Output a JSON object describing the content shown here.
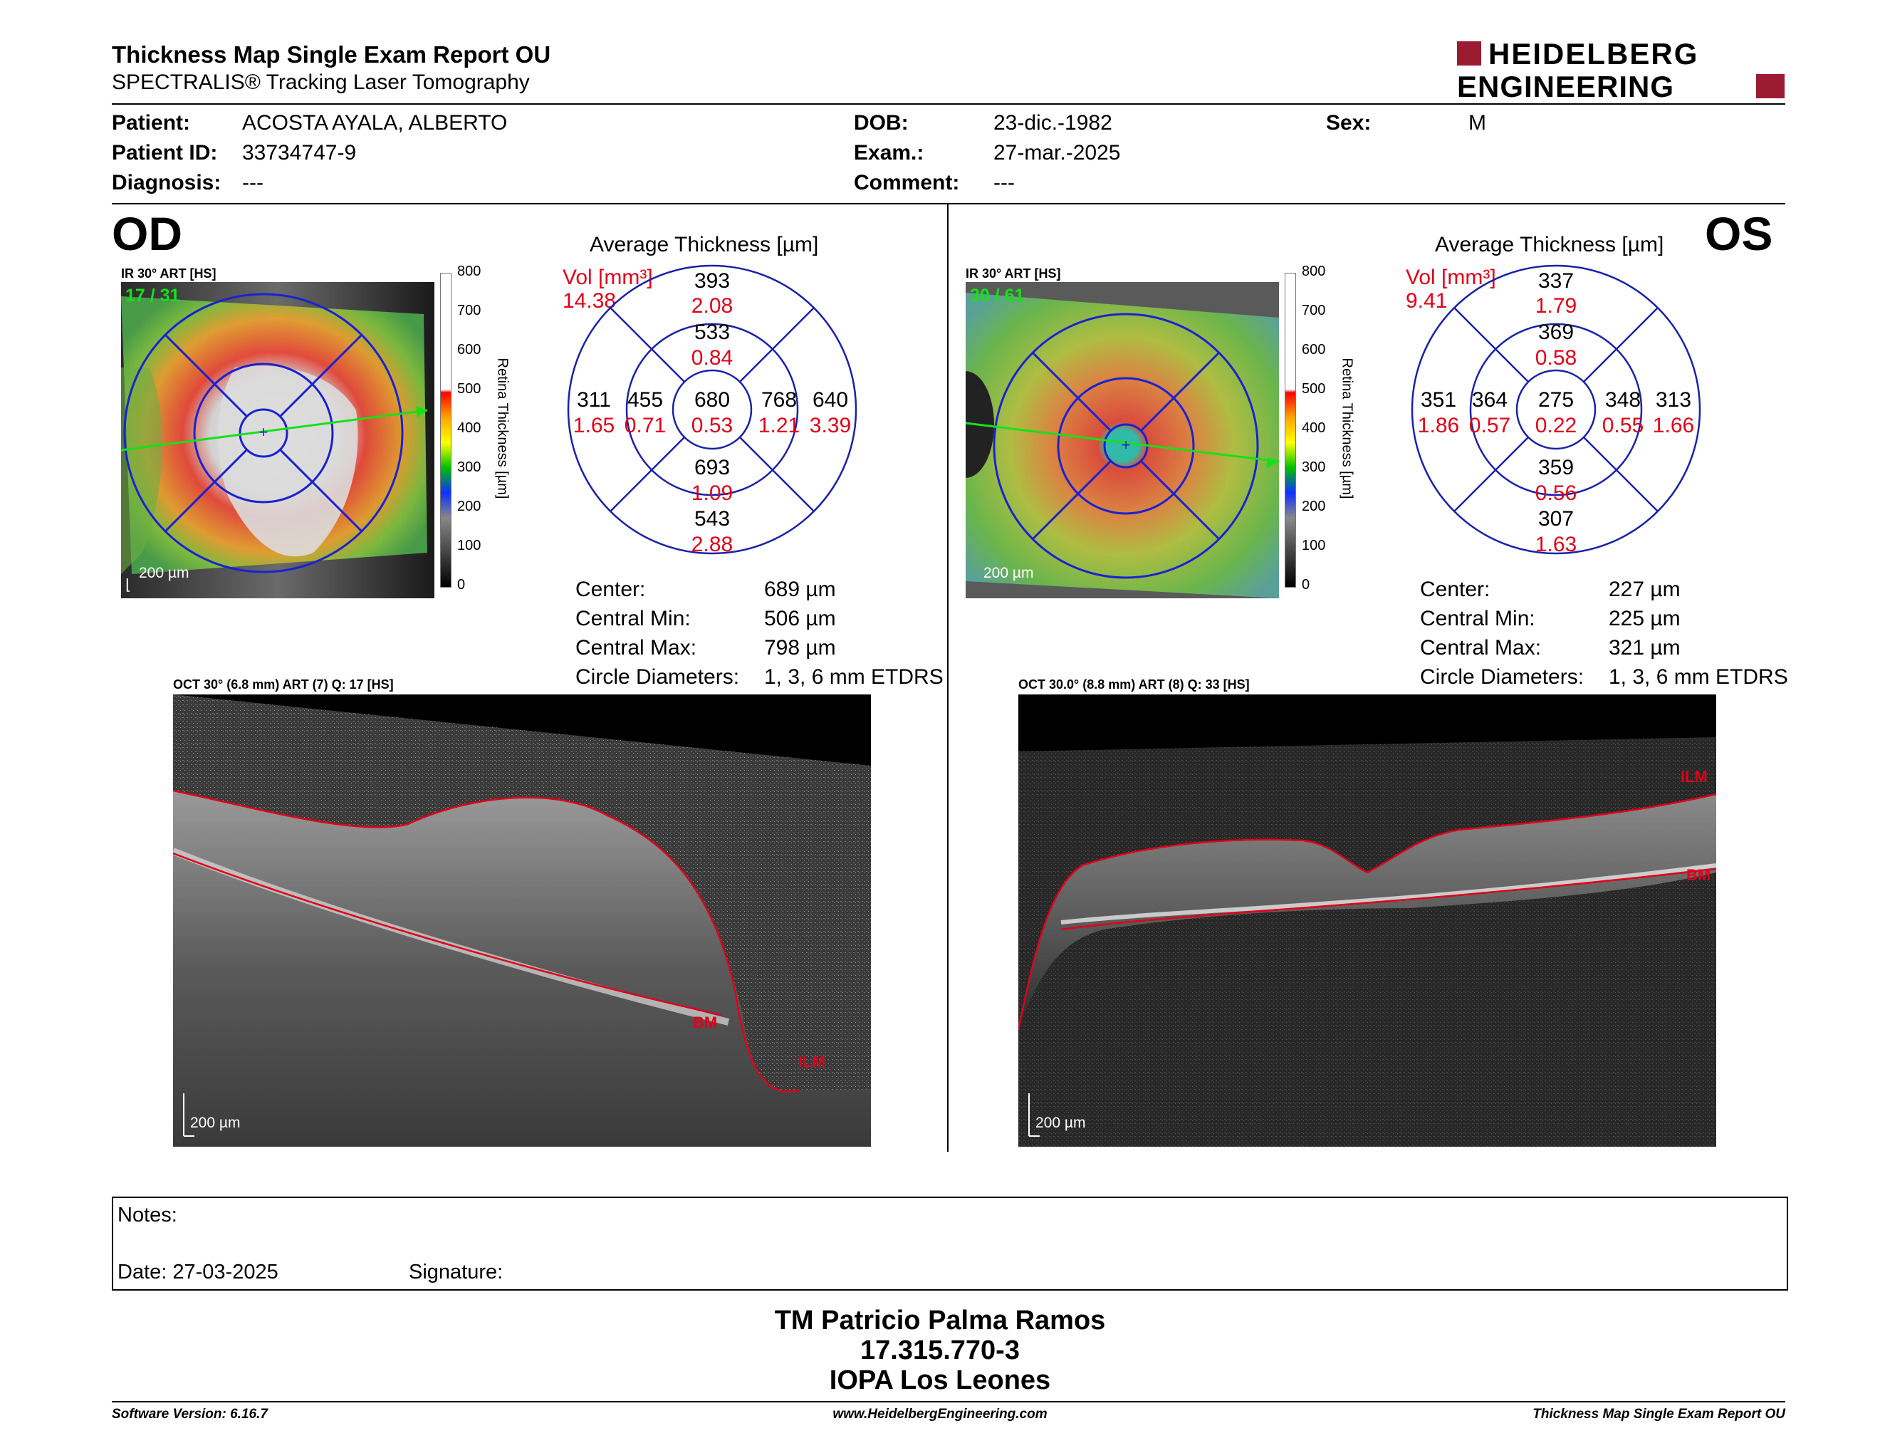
{
  "header": {
    "title": "Thickness Map Single Exam Report OU",
    "subtitle": "SPECTRALIS® Tracking Laser Tomography",
    "logo_line1": "HEIDELBERG",
    "logo_line2": "ENGINEERING",
    "brand_color": "#9b1b30"
  },
  "patient": {
    "patient_label": "Patient:",
    "patient_value": "ACOSTA AYALA, ALBERTO",
    "id_label": "Patient ID:",
    "id_value": "33734747-9",
    "diagnosis_label": "Diagnosis:",
    "diagnosis_value": "---",
    "dob_label": "DOB:",
    "dob_value": "23-dic.-1982",
    "exam_label": "Exam.:",
    "exam_value": "27-mar.-2025",
    "comment_label": "Comment:",
    "comment_value": "---",
    "sex_label": "Sex:",
    "sex_value": "M"
  },
  "od": {
    "eye": "OD",
    "fundus_title": "IR 30° ART [HS]",
    "frames": "17 / 31",
    "scale": "200 µm",
    "avg_title": "Average Thickness [µm]",
    "vol_label": "Vol [mm³]",
    "vol_total": "14.38",
    "center_thickness": "680",
    "center_vol": "0.53",
    "inner_superior": "533",
    "inner_superior_vol": "0.84",
    "inner_inferior": "693",
    "inner_inferior_vol": "1.09",
    "inner_left": "455",
    "inner_left_vol": "0.71",
    "inner_right": "768",
    "inner_right_vol": "1.21",
    "outer_superior": "393",
    "outer_superior_vol": "2.08",
    "outer_inferior": "543",
    "outer_inferior_vol": "2.88",
    "outer_left": "311",
    "outer_left_vol": "1.65",
    "outer_right": "640",
    "outer_right_vol": "3.39",
    "stats": [
      {
        "label": "Center:",
        "value": "689 µm"
      },
      {
        "label": "Central Min:",
        "value": "506 µm"
      },
      {
        "label": "Central Max:",
        "value": "798 µm"
      },
      {
        "label": "Circle Diameters:",
        "value": "1, 3, 6 mm ETDRS"
      }
    ],
    "oct_title": "OCT 30° (6.8 mm) ART (7) Q: 17 [HS]",
    "oct_scale": "200 µm",
    "label_bm": "BM",
    "label_ilm": "ILM"
  },
  "os": {
    "eye": "OS",
    "fundus_title": "IR 30° ART [HS]",
    "frames": "30 / 61",
    "scale": "200 µm",
    "avg_title": "Average Thickness [µm]",
    "vol_label": "Vol [mm³]",
    "vol_total": "9.41",
    "center_thickness": "275",
    "center_vol": "0.22",
    "inner_superior": "369",
    "inner_superior_vol": "0.58",
    "inner_inferior": "359",
    "inner_inferior_vol": "0.56",
    "inner_left": "364",
    "inner_left_vol": "0.57",
    "inner_right": "348",
    "inner_right_vol": "0.55",
    "outer_superior": "337",
    "outer_superior_vol": "1.79",
    "outer_inferior": "307",
    "outer_inferior_vol": "1.63",
    "outer_left": "351",
    "outer_left_vol": "1.86",
    "outer_right": "313",
    "outer_right_vol": "1.66",
    "stats": [
      {
        "label": "Center:",
        "value": "227 µm"
      },
      {
        "label": "Central Min:",
        "value": "225 µm"
      },
      {
        "label": "Central Max:",
        "value": "321 µm"
      },
      {
        "label": "Circle Diameters:",
        "value": "1, 3, 6 mm ETDRS"
      }
    ],
    "oct_title": "OCT 30.0° (8.8 mm) ART (8) Q: 33 [HS]",
    "oct_scale": "200 µm",
    "label_bm": "BM",
    "label_ilm": "ILM"
  },
  "colorbar": {
    "ticks": [
      "800",
      "700",
      "600",
      "500",
      "400",
      "300",
      "200",
      "100",
      "0"
    ],
    "label": "Retina Thickness [µm]"
  },
  "notes": {
    "notes_label": "Notes:",
    "date_label": "Date: 27-03-2025",
    "signature_label": "Signature:"
  },
  "signature": {
    "name": "TM Patricio Palma Ramos",
    "id": "17.315.770-3",
    "org": "IOPA Los Leones"
  },
  "footer": {
    "software": "Software Version: 6.16.7",
    "website": "www.HeidelbergEngineering.com",
    "report": "Thickness Map Single Exam Report OU"
  }
}
